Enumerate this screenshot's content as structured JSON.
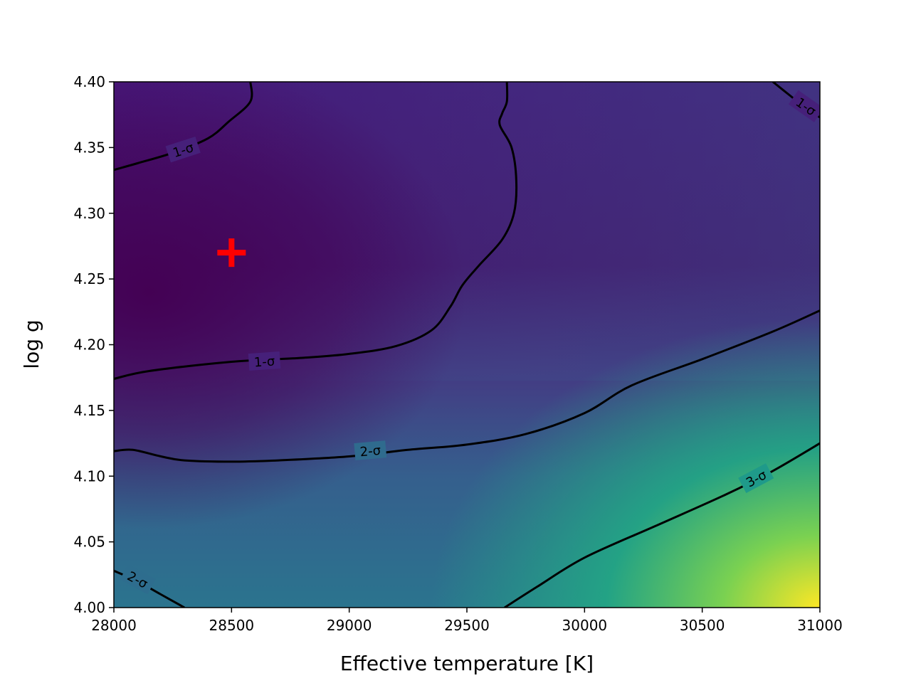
{
  "chart_data": {
    "type": "heatmap",
    "title": "",
    "xlabel": "Effective temperature [K]",
    "ylabel": "log g",
    "xlim": [
      28000,
      31000
    ],
    "ylim": [
      4.0,
      4.4
    ],
    "xticks": [
      28000,
      28500,
      29000,
      29500,
      30000,
      30500,
      31000
    ],
    "xtick_labels": [
      "28000",
      "28500",
      "29000",
      "29500",
      "30000",
      "30500",
      "31000"
    ],
    "yticks": [
      4.0,
      4.05,
      4.1,
      4.15,
      4.2,
      4.25,
      4.3,
      4.35,
      4.4
    ],
    "ytick_labels": [
      "4.00",
      "4.05",
      "4.10",
      "4.15",
      "4.20",
      "4.25",
      "4.30",
      "4.35",
      "4.40"
    ],
    "grid": false,
    "legend": "none",
    "colormap": "viridis",
    "colors": {
      "marker": "#ff0000",
      "contour": "#000000"
    },
    "best_fit_marker": {
      "x": 28500,
      "y": 4.27,
      "shape": "plus"
    },
    "contours": [
      {
        "label": "1-σ",
        "points": [
          [
            28000,
            4.174
          ],
          [
            28150,
            4.18
          ],
          [
            28500,
            4.187
          ],
          [
            28800,
            4.19
          ],
          [
            29000,
            4.193
          ],
          [
            29200,
            4.199
          ],
          [
            29350,
            4.211
          ],
          [
            29430,
            4.229
          ],
          [
            29480,
            4.245
          ],
          [
            29550,
            4.26
          ],
          [
            29650,
            4.28
          ],
          [
            29700,
            4.3
          ],
          [
            29710,
            4.325
          ],
          [
            29690,
            4.35
          ],
          [
            29640,
            4.367
          ],
          [
            29650,
            4.376
          ],
          [
            29670,
            4.385
          ],
          [
            29670,
            4.4
          ]
        ],
        "label_at": {
          "x": 28640,
          "y": 4.187,
          "angle": -4
        }
      },
      {
        "label": "1-σ",
        "points": [
          [
            28000,
            4.333
          ],
          [
            28100,
            4.338
          ],
          [
            28250,
            4.346
          ],
          [
            28400,
            4.357
          ],
          [
            28490,
            4.37
          ],
          [
            28580,
            4.385
          ],
          [
            28580,
            4.4
          ]
        ],
        "label_at": {
          "x": 28295,
          "y": 4.348,
          "angle": -18
        }
      },
      {
        "label": "1-σ",
        "points": [
          [
            30800,
            4.4
          ],
          [
            30870,
            4.39
          ],
          [
            30940,
            4.38
          ],
          [
            31000,
            4.373
          ]
        ],
        "label_at": {
          "x": 30940,
          "y": 4.381,
          "angle": 35
        }
      },
      {
        "label": "2-σ",
        "points": [
          [
            28000,
            4.119
          ],
          [
            28080,
            4.12
          ],
          [
            28200,
            4.115
          ],
          [
            28300,
            4.112
          ],
          [
            28500,
            4.111
          ],
          [
            28700,
            4.112
          ],
          [
            29000,
            4.115
          ],
          [
            29250,
            4.12
          ],
          [
            29500,
            4.124
          ],
          [
            29750,
            4.132
          ],
          [
            30000,
            4.148
          ],
          [
            30200,
            4.169
          ],
          [
            30500,
            4.189
          ],
          [
            30800,
            4.21
          ],
          [
            31000,
            4.226
          ]
        ],
        "label_at": {
          "x": 29090,
          "y": 4.119,
          "angle": -5
        }
      },
      {
        "label": "2-σ",
        "points": [
          [
            28000,
            4.028
          ],
          [
            28100,
            4.02
          ],
          [
            28200,
            4.01
          ],
          [
            28300,
            4.0
          ]
        ],
        "label_at": {
          "x": 28100,
          "y": 4.021,
          "angle": 28
        }
      },
      {
        "label": "3-σ",
        "points": [
          [
            29660,
            4.0
          ],
          [
            29800,
            4.016
          ],
          [
            30000,
            4.038
          ],
          [
            30300,
            4.062
          ],
          [
            30600,
            4.086
          ],
          [
            30800,
            4.104
          ],
          [
            31000,
            4.125
          ]
        ],
        "label_at": {
          "x": 30730,
          "y": 4.098,
          "angle": -28
        }
      }
    ],
    "colormap_field_note": ""
  }
}
